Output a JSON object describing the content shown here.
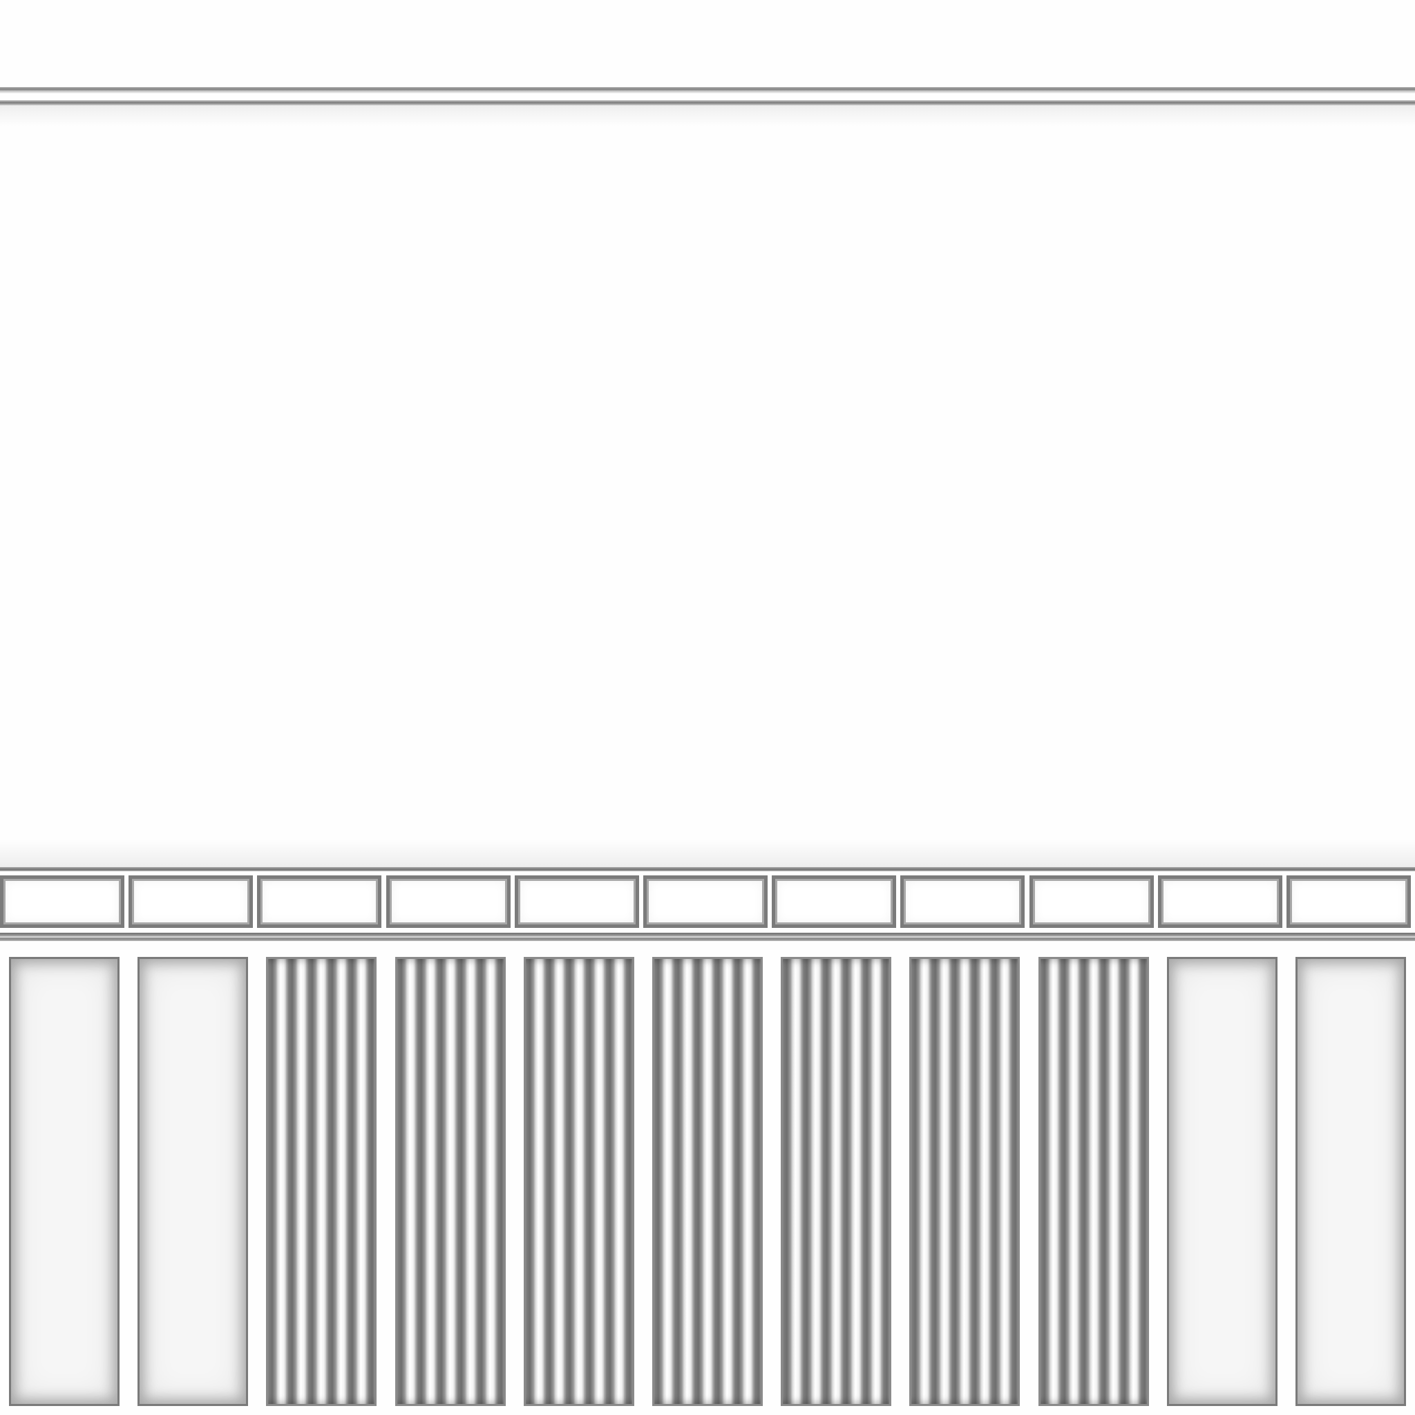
{
  "wall": {
    "background": "#fefefe",
    "frieze_cell_count": 11,
    "panels": [
      {
        "style": "plain"
      },
      {
        "style": "plain"
      },
      {
        "style": "fluted"
      },
      {
        "style": "fluted"
      },
      {
        "style": "fluted"
      },
      {
        "style": "fluted"
      },
      {
        "style": "fluted"
      },
      {
        "style": "fluted"
      },
      {
        "style": "fluted"
      },
      {
        "style": "plain"
      },
      {
        "style": "plain"
      }
    ],
    "colors": {
      "molding_dark": "#7b7b7b",
      "molding_light": "#cfcfcf",
      "panel_fill": "#f6f6f6"
    }
  }
}
